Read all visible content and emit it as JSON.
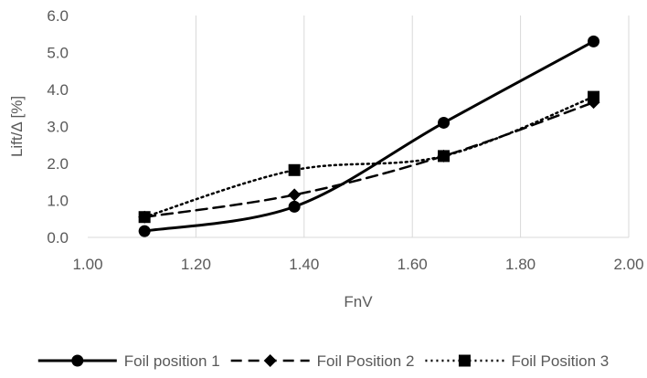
{
  "chart_data": {
    "type": "line",
    "title": "",
    "xlabel": "FnV",
    "ylabel": "Lift/Δ [%]",
    "xlim": [
      1.0,
      2.0
    ],
    "ylim": [
      0.0,
      6.0
    ],
    "x_ticks": [
      "1.00",
      "1.20",
      "1.40",
      "1.60",
      "1.80",
      "2.00"
    ],
    "y_ticks": [
      "0.0",
      "1.0",
      "2.0",
      "3.0",
      "4.0",
      "5.0",
      "6.0"
    ],
    "grid": "vertical",
    "legend_position": "bottom",
    "series": [
      {
        "name": "Foil position 1",
        "marker": "circle",
        "line_style": "solid",
        "color": "#000000",
        "x": [
          1.105,
          1.382,
          1.658,
          1.935
        ],
        "y": [
          0.17,
          0.83,
          3.1,
          5.3
        ]
      },
      {
        "name": "Foil Position 2",
        "marker": "diamond",
        "line_style": "dashed",
        "color": "#000000",
        "x": [
          1.105,
          1.382,
          1.658,
          1.935
        ],
        "y": [
          0.55,
          1.15,
          2.2,
          3.65
        ]
      },
      {
        "name": "Foil Position 3",
        "marker": "square",
        "line_style": "dotted",
        "color": "#000000",
        "x": [
          1.105,
          1.382,
          1.658,
          1.935
        ],
        "y": [
          0.55,
          1.82,
          2.2,
          3.8
        ]
      }
    ]
  }
}
